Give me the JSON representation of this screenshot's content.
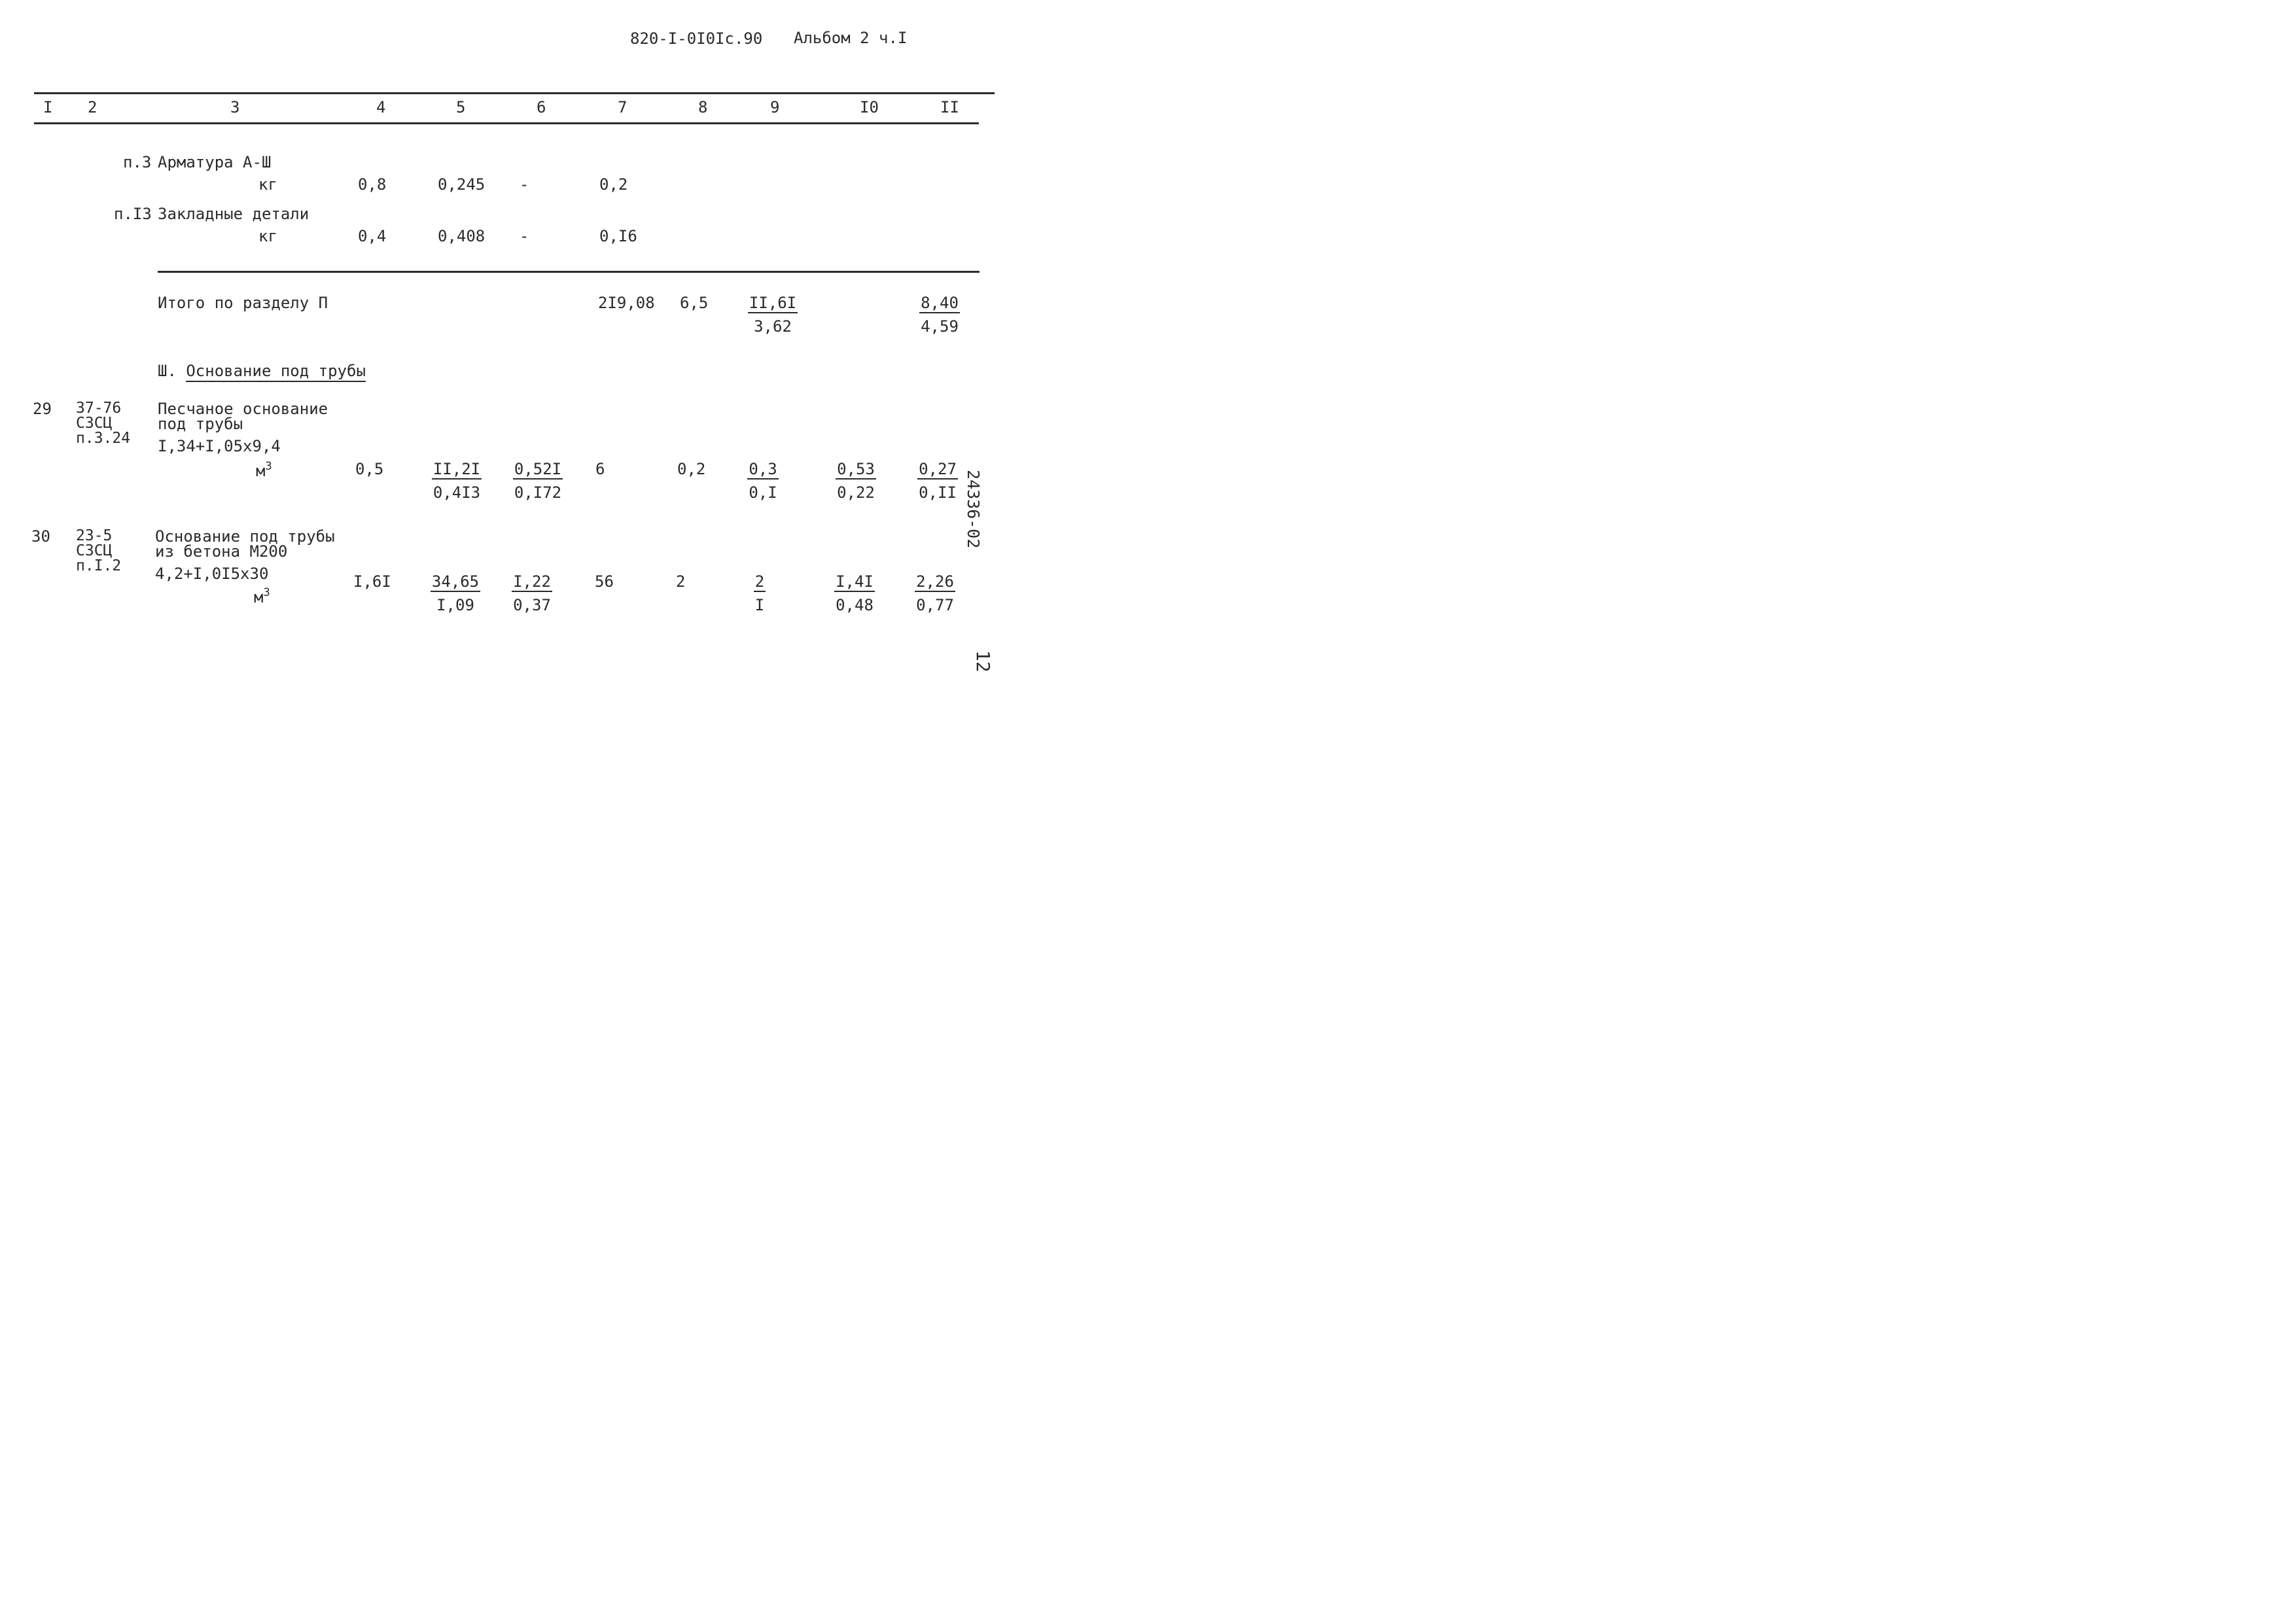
{
  "header": {
    "doc_code": "820-I-0I0Ic.90",
    "album": "Альбом 2 ч.I"
  },
  "columns": [
    "I",
    "2",
    "3",
    "4",
    "5",
    "6",
    "7",
    "8",
    "9",
    "I0",
    "II"
  ],
  "section2_items": [
    {
      "ref": "п.3",
      "name": "Арматура А-Ш",
      "unit": "кг",
      "c4": "0,8",
      "c5": "0,245",
      "c6": "-",
      "c7": "0,2"
    },
    {
      "ref": "п.I3",
      "name": "Закладные детали",
      "unit": "кг",
      "c4": "0,4",
      "c5": "0,408",
      "c6": "-",
      "c7": "0,I6"
    }
  ],
  "section2_total": {
    "label": "Итого по разделу П",
    "c7": "2I9,08",
    "c8": "6,5",
    "c9": {
      "num": "II,6I",
      "den": "3,62"
    },
    "c11": {
      "num": "8,40",
      "den": "4,59"
    }
  },
  "section3": {
    "roman": "Ш.",
    "title": "Основание под трубы"
  },
  "rows": [
    {
      "no": "29",
      "code_lines": [
        "37-76",
        "СЗСЦ",
        "п.3.24"
      ],
      "name_lines": [
        "Песчаное основание",
        "под трубы"
      ],
      "formula": "I,34+I,05x9,4",
      "unit": "м",
      "unit_sup": "3",
      "c4": "0,5",
      "c5": {
        "num": "II,2I",
        "den": "0,4I3"
      },
      "c6": {
        "num": "0,52I",
        "den": "0,I72"
      },
      "c7": "6",
      "c8": "0,2",
      "c9": {
        "num": "0,3",
        "den": "0,I"
      },
      "c10": {
        "num": "0,53",
        "den": "0,22"
      },
      "c11": {
        "num": "0,27",
        "den": "0,II"
      }
    },
    {
      "no": "30",
      "code_lines": [
        "23-5",
        "СЗСЦ",
        "п.I.2"
      ],
      "name_lines": [
        "Основание под трубы",
        "из бетона М200"
      ],
      "formula": "4,2+I,0I5x30",
      "unit": "м",
      "unit_sup": "3",
      "c4": "I,6I",
      "c5": {
        "num": "34,65",
        "den": "I,09"
      },
      "c6": {
        "num": "I,22",
        "den": "0,37"
      },
      "c7": "56",
      "c8": "2",
      "c9": {
        "num": "2",
        "den": "I"
      },
      "c10": {
        "num": "I,4I",
        "den": "0,48"
      },
      "c11": {
        "num": "2,26",
        "den": "0,77"
      }
    }
  ],
  "margin_note": "24336-02",
  "page_mark": "12"
}
